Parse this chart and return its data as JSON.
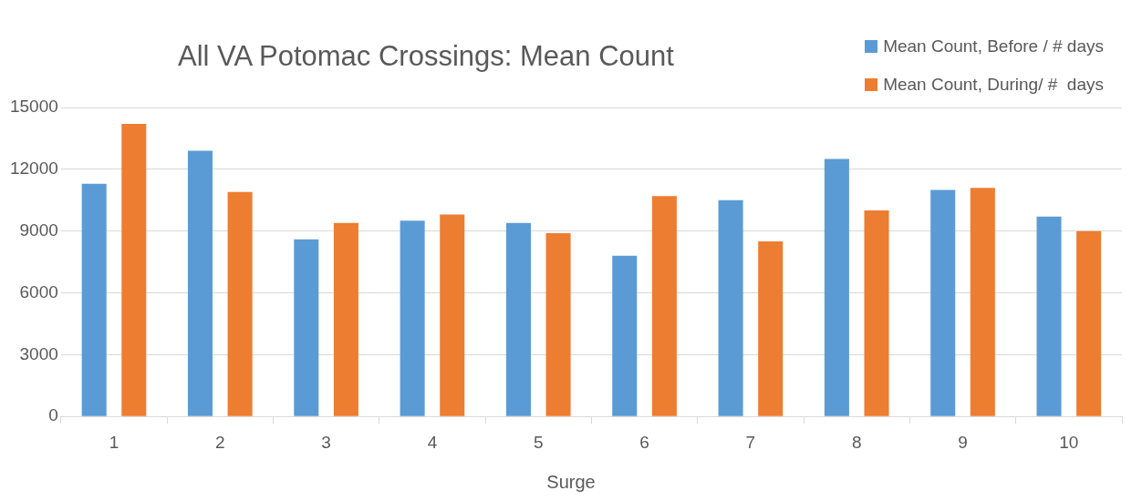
{
  "chart_data": {
    "type": "bar",
    "title": "All VA Potomac Crossings: Mean Count",
    "xlabel": "Surge",
    "categories": [
      "1",
      "2",
      "3",
      "4",
      "5",
      "6",
      "7",
      "8",
      "9",
      "10"
    ],
    "series": [
      {
        "name": "Mean Count, Before / # days",
        "color": "#5b9bd5",
        "values": [
          11300,
          12900,
          8600,
          9500,
          9400,
          7800,
          10500,
          12500,
          11000,
          9700
        ]
      },
      {
        "name": "Mean Count, During/ #  days",
        "color": "#ed7d31",
        "values": [
          14200,
          10900,
          9400,
          9800,
          8900,
          10700,
          8500,
          10000,
          11100,
          9000
        ]
      }
    ],
    "ylim": [
      0,
      15000
    ],
    "yticks": [
      0,
      3000,
      6000,
      9000,
      12000,
      15000
    ],
    "grid": "y",
    "legend": "top right"
  }
}
